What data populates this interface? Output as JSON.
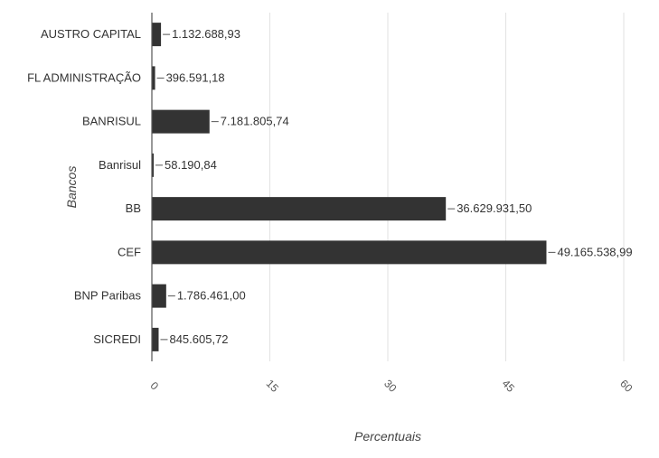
{
  "chart_data": {
    "type": "bar",
    "orientation": "horizontal",
    "categories": [
      "AUSTRO CAPITAL",
      "FL ADMINISTRAÇÃO",
      "BANRISUL",
      "Banrisul",
      "BB",
      "CEF",
      "BNP Paribas",
      "SICREDI"
    ],
    "values": [
      1.16,
      0.41,
      7.33,
      0.06,
      37.38,
      50.17,
      1.82,
      0.86
    ],
    "data_labels": [
      "1.132.688,93",
      "396.591,18",
      "7.181.805,74",
      "58.190,84",
      "36.629.931,50",
      "49.165.538,99",
      "1.786.461,00",
      "845.605,72"
    ],
    "xlabel": "Percentuais",
    "ylabel": "Bancos",
    "xlim": [
      0,
      60
    ],
    "xticks": [
      "0",
      "15",
      "30",
      "45",
      "60"
    ],
    "grid": true,
    "legend": "none",
    "bar_color": "#333333"
  }
}
